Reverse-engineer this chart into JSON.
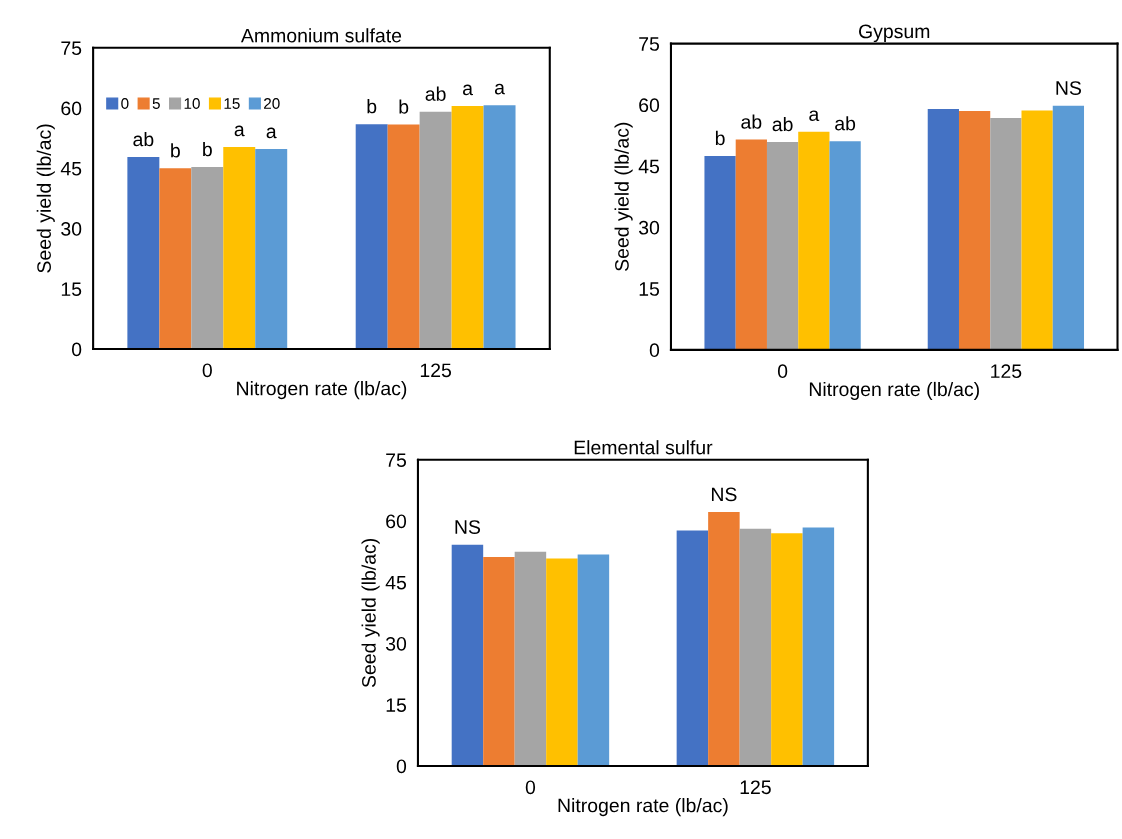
{
  "chart_data": [
    {
      "type": "bar",
      "title": "Ammonium sulfate",
      "xlabel": "Nitrogen rate (lb/ac)",
      "ylabel": "Seed yield (lb/ac)",
      "categories": [
        "0",
        "125"
      ],
      "ylim": [
        0,
        75
      ],
      "yticks": [
        0,
        15,
        30,
        45,
        60,
        75
      ],
      "grid": false,
      "legend": "top left",
      "series": [
        {
          "name": "0",
          "color": "#4472c4",
          "values": [
            47.8,
            56.0
          ],
          "value_labels": [
            "ab",
            "b"
          ]
        },
        {
          "name": "5",
          "color": "#ed7d31",
          "values": [
            45.0,
            55.9
          ],
          "value_labels": [
            "b",
            "b"
          ]
        },
        {
          "name": "10",
          "color": "#a5a5a5",
          "values": [
            45.3,
            59.1
          ],
          "value_labels": [
            "b",
            "ab"
          ]
        },
        {
          "name": "15",
          "color": "#ffc000",
          "values": [
            50.3,
            60.5
          ],
          "value_labels": [
            "a",
            "a"
          ]
        },
        {
          "name": "20",
          "color": "#5b9bd5",
          "values": [
            49.8,
            60.7
          ],
          "value_labels": [
            "a",
            "a"
          ]
        }
      ]
    },
    {
      "type": "bar",
      "title": "Gypsum",
      "xlabel": "Nitrogen rate (lb/ac)",
      "ylabel": "Seed yield (lb/ac)",
      "categories": [
        "0",
        "125"
      ],
      "ylim": [
        0,
        75
      ],
      "yticks": [
        0,
        15,
        30,
        45,
        60,
        75
      ],
      "grid": false,
      "series": [
        {
          "color": "#4472c4",
          "values": [
            47.5,
            59.0
          ],
          "value_labels": [
            "b",
            null
          ]
        },
        {
          "color": "#ed7d31",
          "values": [
            51.5,
            58.5
          ],
          "value_labels": [
            "ab",
            null
          ]
        },
        {
          "color": "#a5a5a5",
          "values": [
            50.9,
            56.8
          ],
          "value_labels": [
            "ab",
            null
          ]
        },
        {
          "color": "#ffc000",
          "values": [
            53.4,
            58.6
          ],
          "value_labels": [
            "a",
            null
          ]
        },
        {
          "color": "#5b9bd5",
          "values": [
            51.1,
            59.8
          ],
          "value_labels": [
            "ab",
            "NS"
          ]
        }
      ]
    },
    {
      "type": "bar",
      "title": "Elemental sulfur",
      "xlabel": "Nitrogen rate (lb/ac)",
      "ylabel": "Seed yield (lb/ac)",
      "categories": [
        "0",
        "125"
      ],
      "ylim": [
        0,
        75
      ],
      "yticks": [
        0,
        15,
        30,
        45,
        60,
        75
      ],
      "grid": false,
      "series": [
        {
          "color": "#4472c4",
          "values": [
            54.2,
            57.7
          ],
          "value_labels": [
            "NS",
            null
          ]
        },
        {
          "color": "#ed7d31",
          "values": [
            51.2,
            62.2
          ],
          "value_labels": [
            null,
            "NS"
          ]
        },
        {
          "color": "#a5a5a5",
          "values": [
            52.5,
            58.1
          ]
        },
        {
          "color": "#ffc000",
          "values": [
            50.8,
            57.0
          ]
        },
        {
          "color": "#5b9bd5",
          "values": [
            51.8,
            58.4
          ]
        }
      ]
    }
  ]
}
